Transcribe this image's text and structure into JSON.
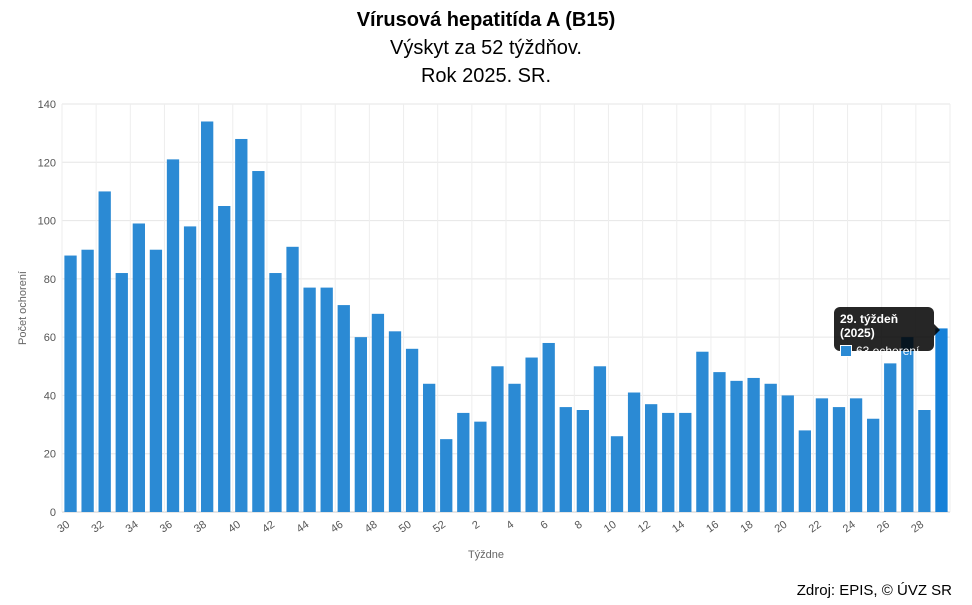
{
  "chart_data": {
    "type": "bar",
    "title": "Vírusová hepatitída A (B15)",
    "subtitle_lines": [
      "Výskyt za 52 týždňov.",
      "Rok 2025. SR."
    ],
    "xlabel": "Týždne",
    "ylabel": "Počet ochorení",
    "ylim": [
      0,
      140
    ],
    "yticks": [
      0,
      20,
      40,
      60,
      80,
      100,
      120,
      140
    ],
    "grid": true,
    "categories": [
      "30",
      "31",
      "32",
      "33",
      "34",
      "35",
      "36",
      "37",
      "38",
      "39",
      "40",
      "41",
      "42",
      "43",
      "44",
      "45",
      "46",
      "47",
      "48",
      "49",
      "50",
      "51",
      "52",
      "1",
      "2",
      "3",
      "4",
      "5",
      "6",
      "7",
      "8",
      "9",
      "10",
      "11",
      "12",
      "13",
      "14",
      "15",
      "16",
      "17",
      "18",
      "19",
      "20",
      "21",
      "22",
      "23",
      "24",
      "25",
      "26",
      "27",
      "28",
      "29"
    ],
    "xtick_labels": [
      "30",
      "32",
      "34",
      "36",
      "38",
      "40",
      "42",
      "44",
      "46",
      "48",
      "50",
      "52",
      "2",
      "4",
      "6",
      "8",
      "10",
      "12",
      "14",
      "16",
      "18",
      "20",
      "22",
      "24",
      "26",
      "28"
    ],
    "values": [
      88,
      90,
      110,
      82,
      99,
      90,
      121,
      98,
      134,
      105,
      128,
      117,
      82,
      91,
      77,
      77,
      71,
      60,
      68,
      62,
      56,
      44,
      25,
      34,
      31,
      50,
      44,
      53,
      58,
      36,
      35,
      50,
      26,
      41,
      37,
      34,
      34,
      55,
      48,
      45,
      46,
      44,
      40,
      28,
      39,
      36,
      39,
      32,
      51,
      60,
      35,
      63
    ],
    "colors": {
      "bar": "#2b8ad4",
      "highlight": "#1681d8"
    },
    "highlight_index": 51,
    "tooltip": {
      "title": "29. týždeň (2025)",
      "value_text": "63 ochorení"
    }
  },
  "source": "Zdroj: EPIS, © ÚVZ SR"
}
